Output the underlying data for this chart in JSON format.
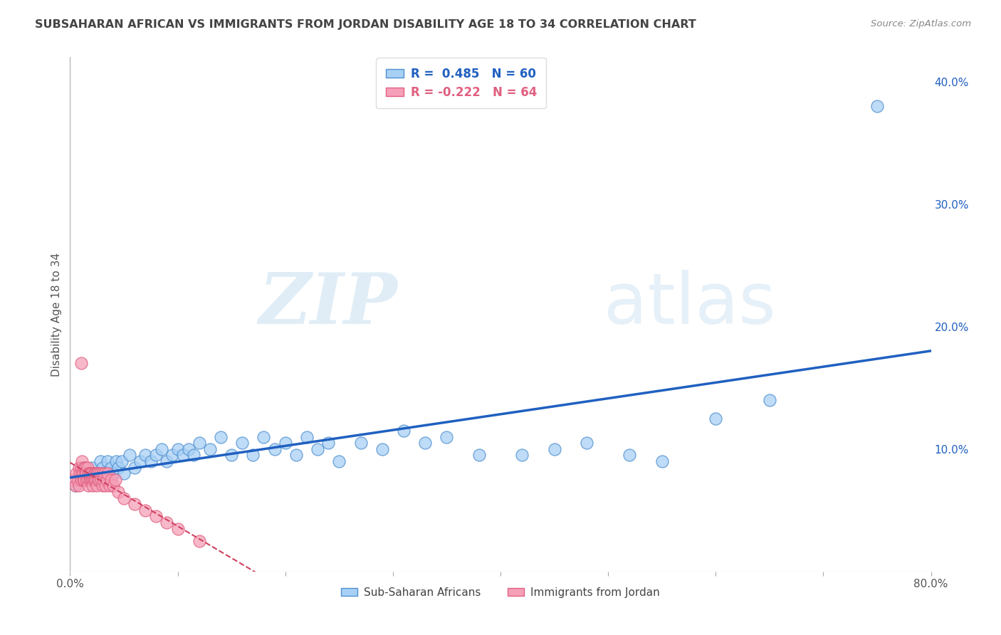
{
  "title": "SUBSAHARAN AFRICAN VS IMMIGRANTS FROM JORDAN DISABILITY AGE 18 TO 34 CORRELATION CHART",
  "source": "Source: ZipAtlas.com",
  "ylabel": "Disability Age 18 to 34",
  "xlim": [
    0,
    0.8
  ],
  "ylim": [
    0,
    0.42
  ],
  "xticks": [
    0.0,
    0.1,
    0.2,
    0.3,
    0.4,
    0.5,
    0.6,
    0.7,
    0.8
  ],
  "xtick_labels": [
    "0.0%",
    "",
    "",
    "",
    "",
    "",
    "",
    "",
    "80.0%"
  ],
  "yticks": [
    0.0,
    0.1,
    0.2,
    0.3,
    0.4
  ],
  "ytick_labels_right": [
    "",
    "10.0%",
    "20.0%",
    "30.0%",
    "40.0%"
  ],
  "blue_R": 0.485,
  "blue_N": 60,
  "pink_R": -0.222,
  "pink_N": 64,
  "blue_color": "#A8D0F5",
  "pink_color": "#F5A0B8",
  "blue_edge_color": "#5090D0",
  "pink_edge_color": "#E06080",
  "blue_line_color": "#2060C0",
  "pink_line_color": "#D04060",
  "blue_label": "Sub-Saharan Africans",
  "pink_label": "Immigrants from Jordan",
  "watermark_zip": "ZIP",
  "watermark_atlas": "atlas",
  "background_color": "#FFFFFF",
  "grid_color": "#CCCCCC",
  "title_color": "#444444",
  "blue_scatter_x": [
    0.005,
    0.008,
    0.01,
    0.012,
    0.015,
    0.018,
    0.02,
    0.022,
    0.025,
    0.028,
    0.03,
    0.033,
    0.035,
    0.038,
    0.04,
    0.043,
    0.045,
    0.048,
    0.05,
    0.055,
    0.06,
    0.065,
    0.07,
    0.075,
    0.08,
    0.085,
    0.09,
    0.095,
    0.1,
    0.105,
    0.11,
    0.115,
    0.12,
    0.13,
    0.14,
    0.15,
    0.16,
    0.17,
    0.18,
    0.19,
    0.2,
    0.21,
    0.22,
    0.23,
    0.24,
    0.25,
    0.27,
    0.29,
    0.31,
    0.33,
    0.35,
    0.38,
    0.42,
    0.45,
    0.48,
    0.52,
    0.55,
    0.6,
    0.65,
    0.75
  ],
  "blue_scatter_y": [
    0.07,
    0.075,
    0.08,
    0.085,
    0.075,
    0.08,
    0.085,
    0.075,
    0.08,
    0.09,
    0.085,
    0.08,
    0.09,
    0.085,
    0.08,
    0.09,
    0.085,
    0.09,
    0.08,
    0.095,
    0.085,
    0.09,
    0.095,
    0.09,
    0.095,
    0.1,
    0.09,
    0.095,
    0.1,
    0.095,
    0.1,
    0.095,
    0.105,
    0.1,
    0.11,
    0.095,
    0.105,
    0.095,
    0.11,
    0.1,
    0.105,
    0.095,
    0.11,
    0.1,
    0.105,
    0.09,
    0.105,
    0.1,
    0.115,
    0.105,
    0.11,
    0.095,
    0.095,
    0.1,
    0.105,
    0.095,
    0.09,
    0.125,
    0.14,
    0.38
  ],
  "pink_scatter_x": [
    0.003,
    0.005,
    0.006,
    0.007,
    0.008,
    0.008,
    0.009,
    0.01,
    0.01,
    0.011,
    0.011,
    0.012,
    0.012,
    0.013,
    0.013,
    0.014,
    0.014,
    0.015,
    0.015,
    0.016,
    0.016,
    0.017,
    0.017,
    0.018,
    0.018,
    0.019,
    0.019,
    0.02,
    0.02,
    0.021,
    0.021,
    0.022,
    0.022,
    0.023,
    0.023,
    0.024,
    0.024,
    0.025,
    0.025,
    0.026,
    0.026,
    0.027,
    0.028,
    0.029,
    0.03,
    0.03,
    0.031,
    0.032,
    0.033,
    0.034,
    0.035,
    0.037,
    0.038,
    0.04,
    0.042,
    0.045,
    0.05,
    0.06,
    0.07,
    0.08,
    0.09,
    0.1,
    0.12,
    0.01
  ],
  "pink_scatter_y": [
    0.075,
    0.07,
    0.08,
    0.075,
    0.085,
    0.07,
    0.08,
    0.075,
    0.085,
    0.08,
    0.09,
    0.075,
    0.08,
    0.085,
    0.075,
    0.08,
    0.085,
    0.075,
    0.08,
    0.085,
    0.075,
    0.08,
    0.07,
    0.075,
    0.08,
    0.075,
    0.08,
    0.075,
    0.08,
    0.075,
    0.07,
    0.08,
    0.075,
    0.08,
    0.075,
    0.08,
    0.075,
    0.08,
    0.07,
    0.075,
    0.08,
    0.075,
    0.08,
    0.075,
    0.07,
    0.08,
    0.075,
    0.08,
    0.07,
    0.075,
    0.08,
    0.07,
    0.075,
    0.07,
    0.075,
    0.065,
    0.06,
    0.055,
    0.05,
    0.045,
    0.04,
    0.035,
    0.025,
    0.17
  ]
}
